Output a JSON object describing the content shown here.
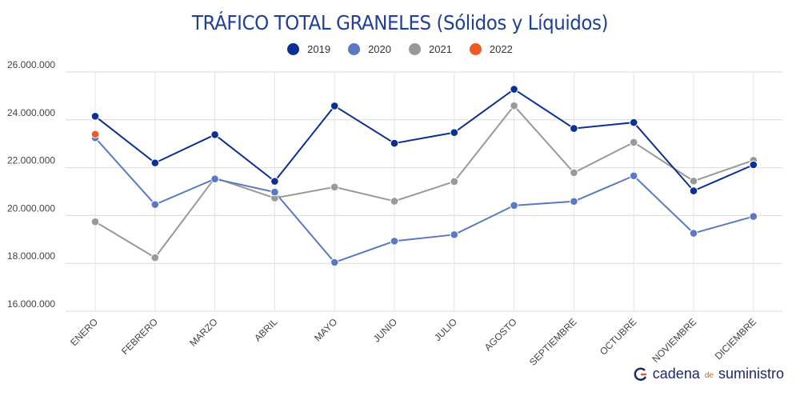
{
  "chart_data": {
    "type": "line",
    "title": "TRÁFICO TOTAL GRANELES (Sólidos y Líquidos)",
    "categories": [
      "ENERO",
      "FEBRERO",
      "MARZO",
      "ABRIL",
      "MAYO",
      "JUNIO",
      "JULIO",
      "AGOSTO",
      "SEPTIEMBRE",
      "OCTUBRE",
      "NOVIEMBRE",
      "DICIEMBRE"
    ],
    "y_ticks": [
      "16.000.000",
      "18.000.000",
      "20.000.000",
      "22.000.000",
      "24.000.000",
      "26.000.000"
    ],
    "ylim": [
      16000000,
      26000000
    ],
    "legend_position": "top-center",
    "grid": true,
    "series": [
      {
        "name": "2019",
        "color": "#0b2f94",
        "values": [
          24150000,
          22200000,
          23380000,
          21430000,
          24580000,
          23020000,
          23470000,
          25280000,
          23640000,
          23890000,
          21030000,
          22120000
        ]
      },
      {
        "name": "2020",
        "color": "#5a78c4",
        "values": [
          23250000,
          20460000,
          21530000,
          20980000,
          18040000,
          18930000,
          19200000,
          20420000,
          20590000,
          21660000,
          19260000,
          19960000
        ]
      },
      {
        "name": "2021",
        "color": "#999999",
        "values": [
          19740000,
          18240000,
          21570000,
          20730000,
          21190000,
          20600000,
          21420000,
          24590000,
          21790000,
          23060000,
          21440000,
          22310000
        ]
      },
      {
        "name": "2022",
        "color": "#f0591f",
        "values": [
          23400000,
          null,
          null,
          null,
          null,
          null,
          null,
          null,
          null,
          null,
          null,
          null
        ]
      }
    ]
  },
  "brand": {
    "part1": "cadena",
    "part2": "de",
    "part3": "suministro"
  }
}
